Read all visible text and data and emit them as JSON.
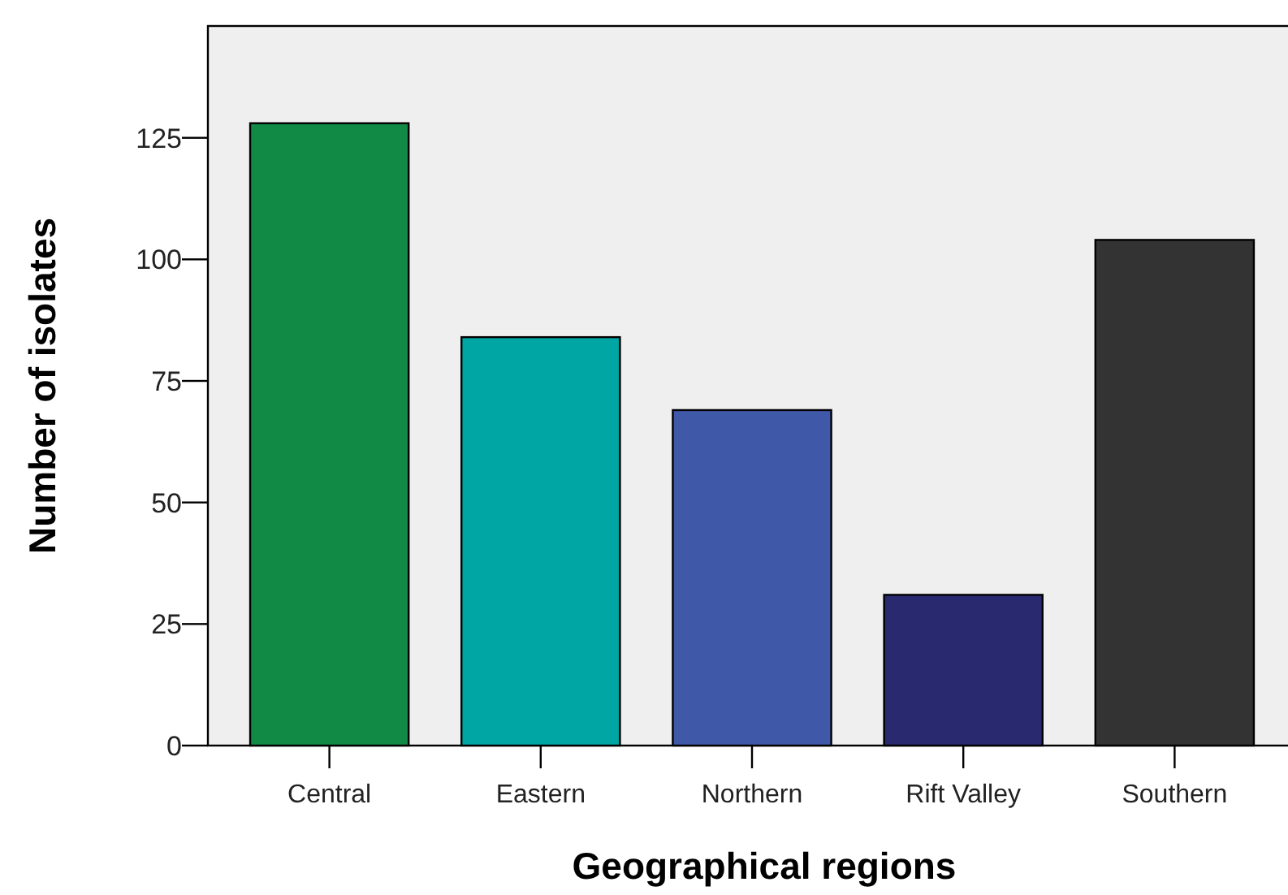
{
  "chart_data": {
    "type": "bar",
    "xlabel": "Geographical regions",
    "ylabel": "Number of isolates",
    "categories": [
      "Central",
      "Eastern",
      "Northern",
      "Rift Valley",
      "Southern"
    ],
    "values": [
      128,
      84,
      69,
      31,
      104
    ],
    "colors": [
      "#118a45",
      "#00a6a4",
      "#3f58a8",
      "#29296f",
      "#333333"
    ],
    "ylim": [
      0,
      148
    ],
    "yticks": [
      0,
      25,
      50,
      75,
      100,
      125
    ],
    "grid": false
  }
}
